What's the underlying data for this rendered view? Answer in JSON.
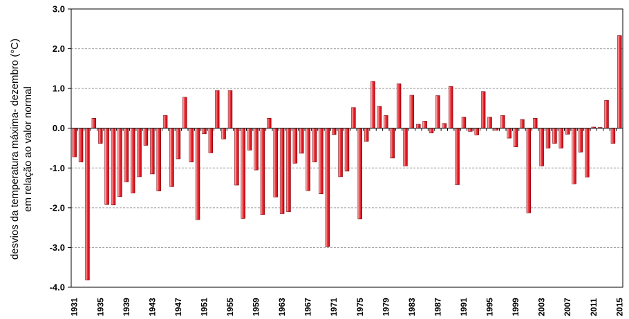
{
  "chart_data": {
    "type": "bar",
    "ylabel_line1": "desvios da temperatura máxima- dezembro (°C)",
    "ylabel_line2": "em relação ao valor normal",
    "ylim": [
      -4.0,
      3.0
    ],
    "yticks": [
      "3.0",
      "2.0",
      "1.0",
      "0.0",
      "-1.0",
      "-2.0",
      "-3.0",
      "-4.0"
    ],
    "ytick_values": [
      3,
      2,
      1,
      0,
      -1,
      -2,
      -3,
      -4
    ],
    "xtick_labels": [
      "1931",
      "1935",
      "1939",
      "1943",
      "1947",
      "1951",
      "1955",
      "1959",
      "1963",
      "1967",
      "1971",
      "1975",
      "1979",
      "1983",
      "1987",
      "1991",
      "1995",
      "1999",
      "2003",
      "2007",
      "2011",
      "2015"
    ],
    "grid": "horizontal-dashed",
    "bar_color": "#e8202a",
    "x": [
      1931,
      1932,
      1933,
      1934,
      1935,
      1936,
      1937,
      1938,
      1939,
      1940,
      1941,
      1942,
      1943,
      1944,
      1945,
      1946,
      1947,
      1948,
      1949,
      1950,
      1951,
      1952,
      1953,
      1954,
      1955,
      1956,
      1957,
      1958,
      1959,
      1960,
      1961,
      1962,
      1963,
      1964,
      1965,
      1966,
      1967,
      1968,
      1969,
      1970,
      1971,
      1972,
      1973,
      1974,
      1975,
      1976,
      1977,
      1978,
      1979,
      1980,
      1981,
      1982,
      1983,
      1984,
      1985,
      1986,
      1987,
      1988,
      1989,
      1990,
      1991,
      1992,
      1993,
      1994,
      1995,
      1996,
      1997,
      1998,
      1999,
      2000,
      2001,
      2002,
      2003,
      2004,
      2005,
      2006,
      2007,
      2008,
      2009,
      2010,
      2011,
      2012,
      2013,
      2014,
      2015
    ],
    "values": [
      -0.72,
      -0.85,
      -3.82,
      0.25,
      -0.38,
      -1.92,
      -1.93,
      -1.72,
      -1.35,
      -1.63,
      -1.22,
      -0.43,
      -1.15,
      -1.58,
      0.32,
      -1.47,
      -0.77,
      0.78,
      -0.85,
      -2.3,
      -0.14,
      -0.62,
      0.95,
      -0.27,
      0.95,
      -1.43,
      -2.27,
      -0.55,
      -1.05,
      -2.17,
      0.25,
      -1.73,
      -2.15,
      -2.1,
      -0.88,
      -0.63,
      -1.57,
      -0.85,
      -1.65,
      -2.98,
      -0.16,
      -1.22,
      -1.08,
      0.52,
      -2.28,
      -0.33,
      1.18,
      0.55,
      0.32,
      -0.75,
      1.12,
      -0.95,
      0.83,
      0.1,
      0.18,
      -0.12,
      0.82,
      0.12,
      1.05,
      -1.42,
      0.28,
      -0.08,
      -0.17,
      0.92,
      0.28,
      -0.05,
      0.32,
      -0.25,
      -0.47,
      0.22,
      -2.13,
      0.25,
      -0.95,
      -0.5,
      -0.38,
      -0.5,
      -0.15,
      -1.4,
      -0.6,
      -1.23,
      0.03,
      0.02,
      0.7,
      -0.38,
      2.33
    ]
  }
}
